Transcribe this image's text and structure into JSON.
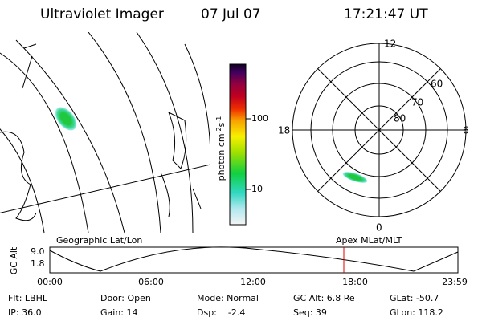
{
  "header": {
    "title": "Ultraviolet Imager",
    "date": "07 Jul 07",
    "time": "17:21:47 UT"
  },
  "colorbar": {
    "labels": [
      "100",
      "10"
    ],
    "unit": {
      "base": "photon cm",
      "exp1": "-2",
      "mid": "s",
      "exp2": "-1"
    }
  },
  "polar": {
    "mlt_labels": [
      "12",
      "18",
      "6",
      "0"
    ],
    "lat_labels": [
      "60",
      "70",
      "80"
    ]
  },
  "timeline": {
    "left_label": "Geographic Lat/Lon",
    "right_label": "Apex MLat/MLT",
    "axis_label": "GC Alt",
    "y_labels": [
      "9.0",
      "1.8"
    ],
    "time_labels": [
      "00:00",
      "06:00",
      "12:00",
      "18:00",
      "23:59"
    ]
  },
  "footer": {
    "rows": [
      [
        "Flt: LBHL",
        "Door: Open",
        "Mode: Normal",
        "GC Alt: 6.8 Re",
        "GLat: -50.7"
      ],
      [
        "IP: 36.0",
        "Gain: 14",
        "Dsp:    -2.4",
        "Seq: 39",
        "GLon: 118.2"
      ]
    ]
  }
}
